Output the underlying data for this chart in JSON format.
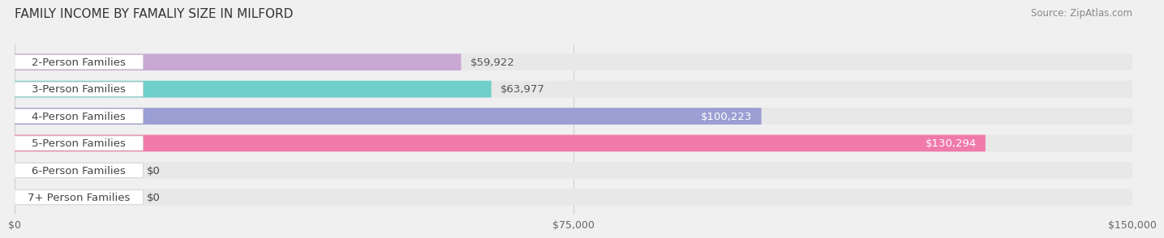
{
  "title": "FAMILY INCOME BY FAMALIY SIZE IN MILFORD",
  "source": "Source: ZipAtlas.com",
  "categories": [
    "2-Person Families",
    "3-Person Families",
    "4-Person Families",
    "5-Person Families",
    "6-Person Families",
    "7+ Person Families"
  ],
  "values": [
    59922,
    63977,
    100223,
    130294,
    0,
    0
  ],
  "bar_colors": [
    "#c9a8d4",
    "#6ecfcb",
    "#9b9fd4",
    "#f07aaa",
    "#f5c99a",
    "#f0a89a"
  ],
  "label_colors": [
    "#555555",
    "#555555",
    "#ffffff",
    "#ffffff",
    "#555555",
    "#555555"
  ],
  "x_max": 150000,
  "x_ticks": [
    0,
    75000,
    150000
  ],
  "x_tick_labels": [
    "$0",
    "$75,000",
    "$150,000"
  ],
  "background_color": "#f0f0f0",
  "bar_bg_color": "#e8e8e8",
  "bar_height": 0.62,
  "label_fontsize": 9.5,
  "title_fontsize": 11,
  "source_fontsize": 8.5
}
